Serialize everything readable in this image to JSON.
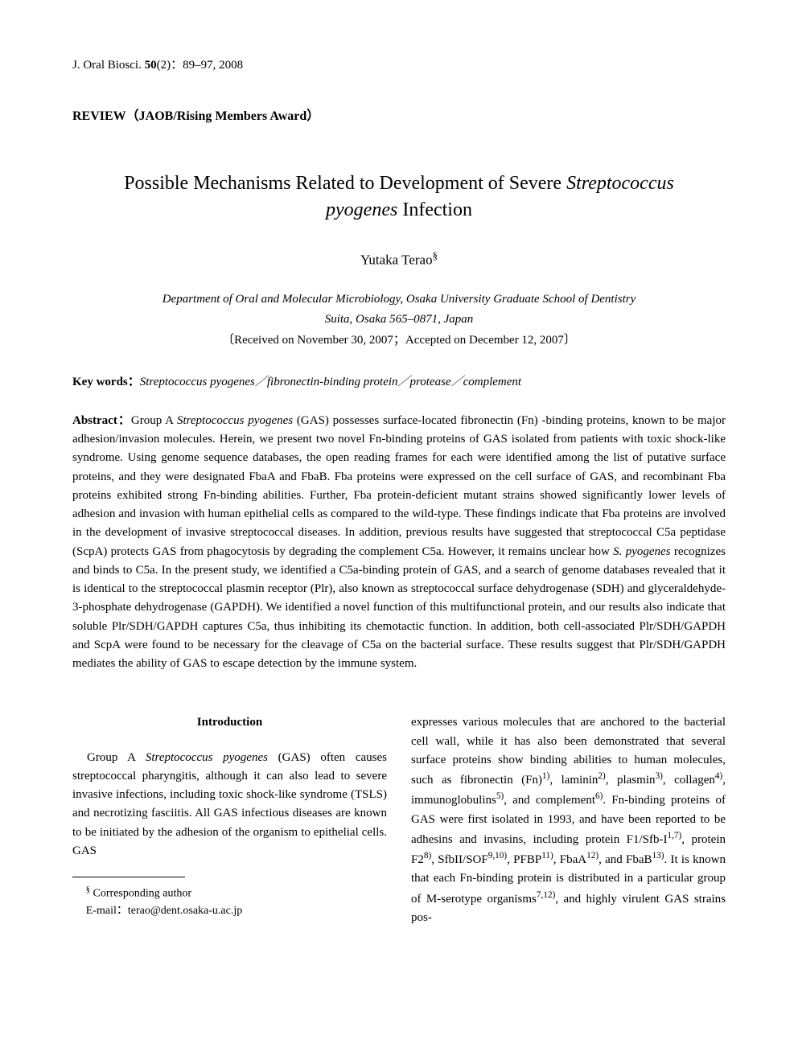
{
  "journal": {
    "name": "J. Oral Biosci.",
    "volume": "50",
    "issue": "(2)",
    "pages": "89–97, 2008"
  },
  "section_label": "REVIEW（JAOB/Rising Members Award）",
  "title_part1": "Possible Mechanisms Related to Development of Severe ",
  "title_species": "Streptococcus pyogenes",
  "title_part2": " Infection",
  "author": "Yutaka Terao",
  "author_mark": "§",
  "affiliation_line1": "Department of Oral and Molecular Microbiology, Osaka University Graduate School of Dentistry",
  "affiliation_line2": "Suita, Osaka 565–0871, Japan",
  "received": "〔Received on November 30, 2007；Accepted on December 12, 2007〕",
  "keywords_label": "Key words：",
  "keywords_content": "Streptococcus pyogenes／fibronectin-binding protein／protease／complement",
  "abstract_label": "Abstract：",
  "abstract_p1a": "Group A ",
  "abstract_sp1": "Streptococcus pyogenes",
  "abstract_p1b": " (GAS) possesses surface-located fibronectin (Fn) -binding proteins, known to be major adhesion/invasion molecules. Herein, we present two novel Fn-binding proteins of GAS isolated from patients with toxic shock-like syndrome. Using genome sequence databases, the open reading frames for each were identified among the list of putative surface proteins, and they were designated FbaA and FbaB. Fba proteins were expressed on the cell surface of GAS, and recombinant Fba proteins exhibited strong Fn-binding abilities. Further, Fba protein-deficient mutant strains showed significantly lower levels of adhesion and invasion with human epithelial cells as compared to the wild-type. These findings indicate that Fba proteins are involved in the development of invasive streptococcal diseases. In addition, previous results have suggested that streptococcal C5a peptidase (ScpA) protects GAS from phagocytosis by degrading the complement C5a. However, it remains unclear how ",
  "abstract_sp2": "S. pyogenes",
  "abstract_p1c": " recognizes and binds to C5a. In the present study, we identified a C5a-binding protein of GAS, and a search of genome databases revealed that it is identical to the streptococcal plasmin receptor (Plr), also known as streptococcal surface dehydrogenase (SDH) and glyceraldehyde-3-phosphate dehydrogenase (GAPDH). We identified a novel function of this multifunctional protein, and our results also indicate that soluble Plr/SDH/GAPDH captures C5a, thus inhibiting its chemotactic function. In addition, both cell-associated Plr/SDH/GAPDH and ScpA were found to be necessary for the cleavage of C5a on the bacterial surface. These results suggest that Plr/SDH/GAPDH mediates the ability of GAS to escape detection by the immune system.",
  "intro_heading": "Introduction",
  "intro_left_a": "Group A ",
  "intro_left_sp": "Streptococcus pyogenes",
  "intro_left_b": " (GAS) often causes streptococcal pharyngitis, although it can also lead to severe invasive infections, including toxic shock-like syndrome (TSLS) and necrotizing fasciitis. All GAS infectious diseases are known to be initiated by the adhesion of the organism to epithelial cells. GAS",
  "intro_right_a": "expresses various molecules that are anchored to the bacterial cell wall, while it has also been demonstrated that several surface proteins show binding abilities to human molecules, such as fibronectin (Fn)",
  "intro_right_b": ", laminin",
  "intro_right_c": ", plasmin",
  "intro_right_d": ", collagen",
  "intro_right_e": ", immunoglobulins",
  "intro_right_f": ", and complement",
  "intro_right_g": ". Fn-binding proteins of GAS were first isolated in 1993, and have been reported to be adhesins and invasins, including protein F1/Sfb-I",
  "intro_right_h": ", protein F2",
  "intro_right_i": ", SfbII/SOF",
  "intro_right_j": ", PFBP",
  "intro_right_k": ", FbaA",
  "intro_right_l": ", and FbaB",
  "intro_right_m": ". It is known that each Fn-binding protein is distributed in a particular group of M-serotype organisms",
  "intro_right_n": ", and highly virulent GAS strains pos-",
  "sup1": "1)",
  "sup2": "2)",
  "sup3": "3)",
  "sup4": "4)",
  "sup5": "5)",
  "sup6": "6)",
  "sup17": "1,7)",
  "sup8": "8)",
  "sup910": "9,10)",
  "sup11": "11)",
  "sup12": "12)",
  "sup13": "13)",
  "sup712": "7,12)",
  "footnote_mark": "§",
  "footnote_label": "Corresponding author",
  "footnote_email_label": "E-mail：",
  "footnote_email": "terao@dent.osaka-u.ac.jp"
}
